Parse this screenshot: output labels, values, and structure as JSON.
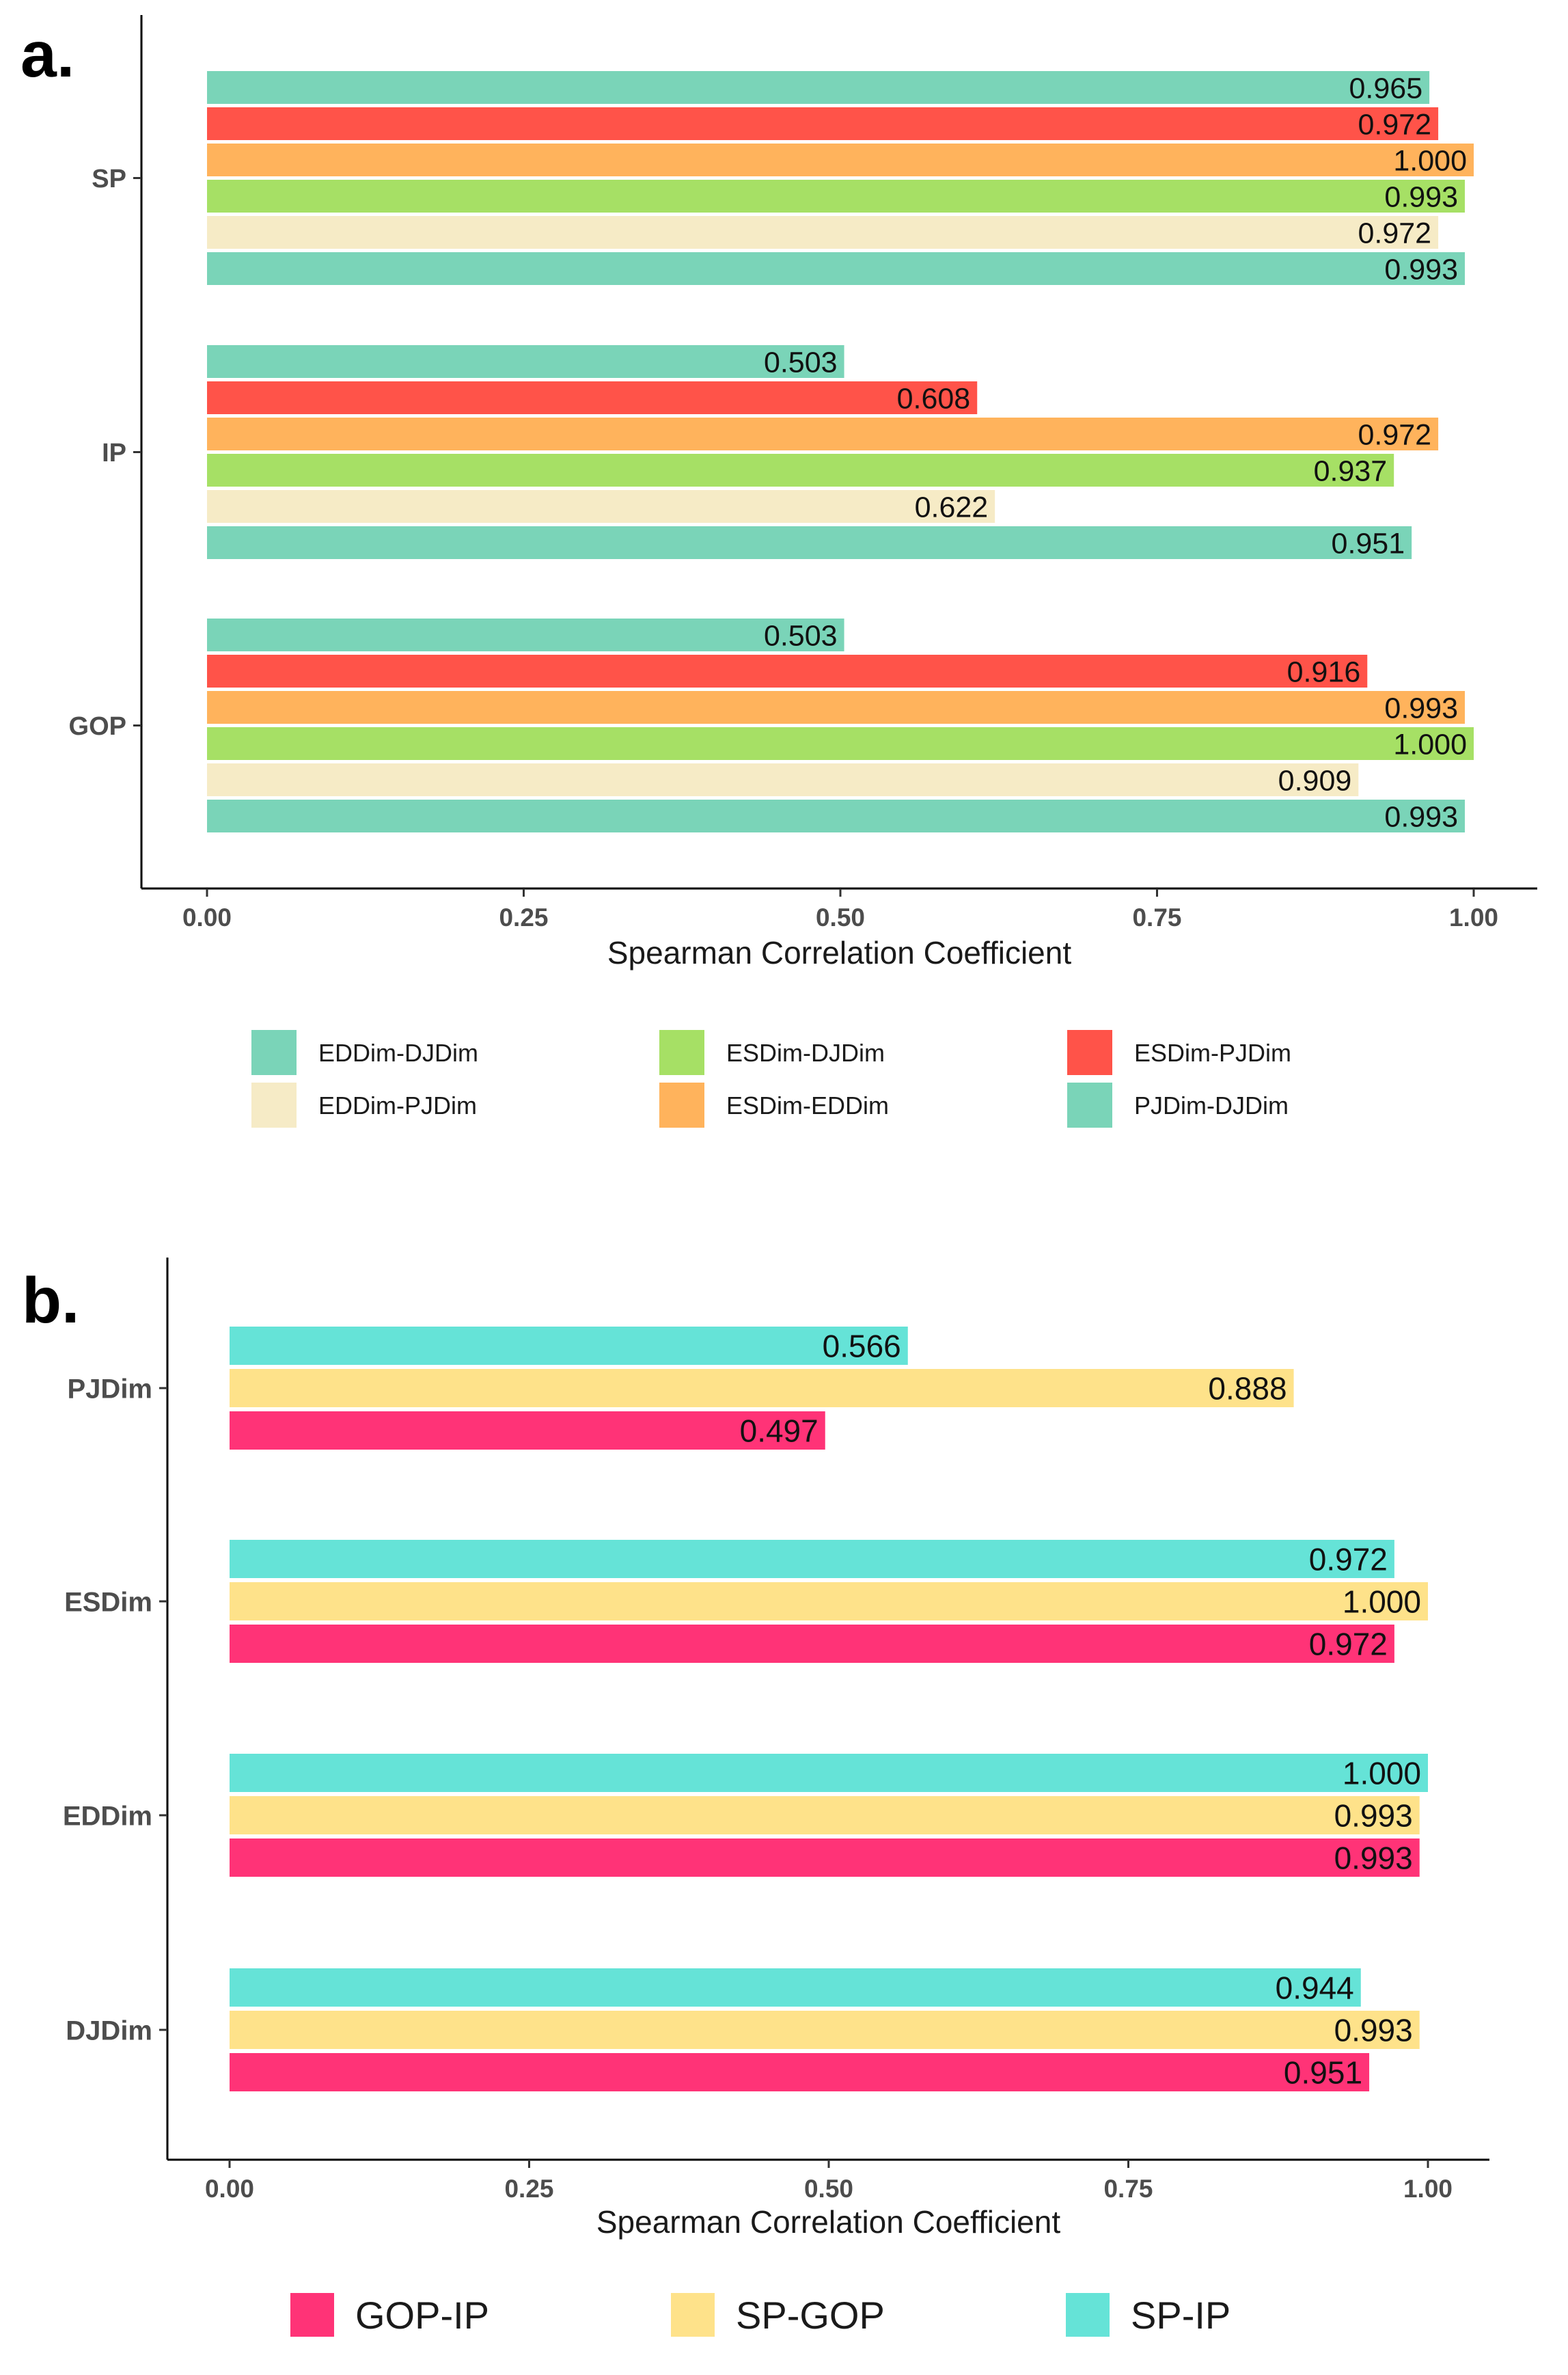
{
  "chart_data": [
    {
      "panel": "a.",
      "type": "bar",
      "orientation": "horizontal",
      "xlabel": "Spearman Correlation Coefficient",
      "xlim": [
        0,
        1
      ],
      "xticks": [
        "0.00",
        "0.25",
        "0.50",
        "0.75",
        "1.00"
      ],
      "xtick_values": [
        0,
        0.25,
        0.5,
        0.75,
        1
      ],
      "categories": [
        "SP",
        "IP",
        "GOP"
      ],
      "series": [
        {
          "name": "EDDim-DJDim",
          "color": "#7ad4b8",
          "values": [
            0.965,
            0.503,
            0.503
          ],
          "labels": [
            "0.965",
            "0.503",
            "0.503"
          ]
        },
        {
          "name": "ESDim-PJDim",
          "color": "#ff5349",
          "values": [
            0.972,
            0.608,
            0.916
          ],
          "labels": [
            "0.972",
            "0.608",
            "0.916"
          ]
        },
        {
          "name": "ESDim-EDDim",
          "color": "#ffb35c",
          "values": [
            1.0,
            0.972,
            0.993
          ],
          "labels": [
            "1.000",
            "0.972",
            "0.993"
          ]
        },
        {
          "name": "ESDim-DJDim",
          "color": "#a6e065",
          "values": [
            0.993,
            0.937,
            1.0
          ],
          "labels": [
            "0.993",
            "0.937",
            "1.000"
          ]
        },
        {
          "name": "EDDim-PJDim",
          "color": "#f6ebc6",
          "values": [
            0.972,
            0.622,
            0.909
          ],
          "labels": [
            "0.972",
            "0.622",
            "0.909"
          ]
        },
        {
          "name": "PJDim-DJDim",
          "color": "#7ad4b8",
          "values": [
            0.993,
            0.951,
            0.993
          ],
          "labels": [
            "0.993",
            "0.951",
            "0.993"
          ]
        }
      ],
      "legend": {
        "position": "bottom",
        "items": [
          {
            "label": "EDDim-DJDim",
            "color": "#7ad4b8"
          },
          {
            "label": "ESDim-DJDim",
            "color": "#a6e065"
          },
          {
            "label": "ESDim-PJDim",
            "color": "#ff5349"
          },
          {
            "label": "EDDim-PJDim",
            "color": "#f6ebc6"
          },
          {
            "label": "ESDim-EDDim",
            "color": "#ffb35c"
          },
          {
            "label": "PJDim-DJDim",
            "color": "#7ad4b8"
          }
        ]
      }
    },
    {
      "panel": "b.",
      "type": "bar",
      "orientation": "horizontal",
      "xlabel": "Spearman Correlation Coefficient",
      "xlim": [
        0,
        1
      ],
      "xticks": [
        "0.00",
        "0.25",
        "0.50",
        "0.75",
        "1.00"
      ],
      "xtick_values": [
        0,
        0.25,
        0.5,
        0.75,
        1
      ],
      "categories": [
        "PJDim",
        "ESDim",
        "EDDim",
        "DJDim"
      ],
      "series": [
        {
          "name": "SP-IP",
          "color": "#65e3d7",
          "values": [
            0.566,
            0.972,
            1.0,
            0.944
          ],
          "labels": [
            "0.566",
            "0.972",
            "1.000",
            "0.944"
          ]
        },
        {
          "name": "SP-GOP",
          "color": "#fee28a",
          "values": [
            0.888,
            1.0,
            0.993,
            0.993
          ],
          "labels": [
            "0.888",
            "1.000",
            "0.993",
            "0.993"
          ]
        },
        {
          "name": "GOP-IP",
          "color": "#ff3377",
          "values": [
            0.497,
            0.972,
            0.993,
            0.951
          ],
          "labels": [
            "0.497",
            "0.972",
            "0.993",
            "0.951"
          ]
        }
      ],
      "legend": {
        "position": "bottom",
        "items": [
          {
            "label": "GOP-IP",
            "color": "#ff3377"
          },
          {
            "label": "SP-GOP",
            "color": "#fee28a"
          },
          {
            "label": "SP-IP",
            "color": "#65e3d7"
          }
        ]
      }
    }
  ]
}
